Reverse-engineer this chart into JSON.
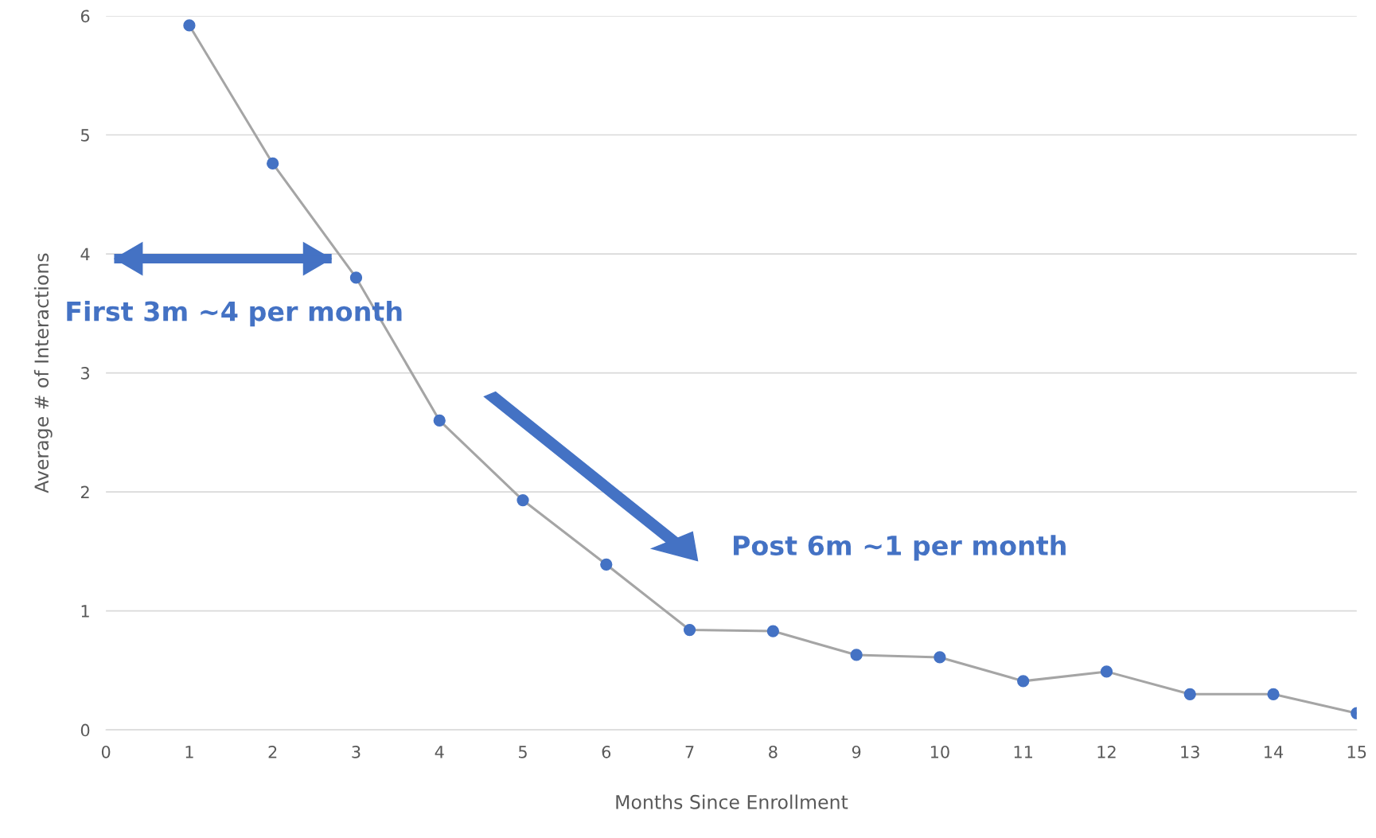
{
  "chart_data": {
    "type": "line",
    "xlabel": "Months Since Enrollment",
    "ylabel": "Average # of Interactions",
    "x": [
      1,
      2,
      3,
      4,
      5,
      6,
      7,
      8,
      9,
      10,
      11,
      12,
      13,
      14,
      15
    ],
    "series": [
      {
        "color": "#4472c4",
        "values": [
          5.92,
          4.76,
          3.8,
          2.6,
          1.93,
          1.39,
          0.84,
          0.83,
          0.63,
          0.61,
          0.41,
          0.49,
          0.3,
          0.3,
          0.14
        ]
      }
    ],
    "xlim": [
      0,
      15
    ],
    "xticks": [
      0,
      1,
      2,
      3,
      4,
      5,
      6,
      7,
      8,
      9,
      10,
      11,
      12,
      13,
      14,
      15
    ],
    "ylim": [
      0,
      6
    ],
    "yticks": [
      0,
      1,
      2,
      3,
      4,
      5,
      6
    ],
    "grid": "y",
    "marker": "circle",
    "line_style": "solid",
    "annotations": [
      "First 3m ~4 per month",
      "Post 6m ~1 per month"
    ]
  }
}
